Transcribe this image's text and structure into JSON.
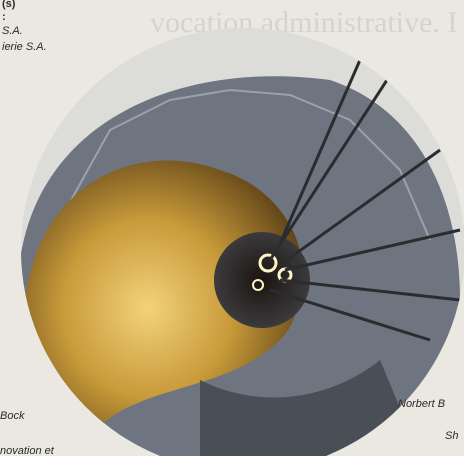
{
  "fragments": {
    "top_left": [
      "(s)",
      ":",
      "S.A.",
      "ierie S.A."
    ],
    "background_heading": "vocation administrative. I"
  },
  "captions": [
    "Bock",
    "novation et",
    "Norbert B",
    "Sh"
  ]
}
